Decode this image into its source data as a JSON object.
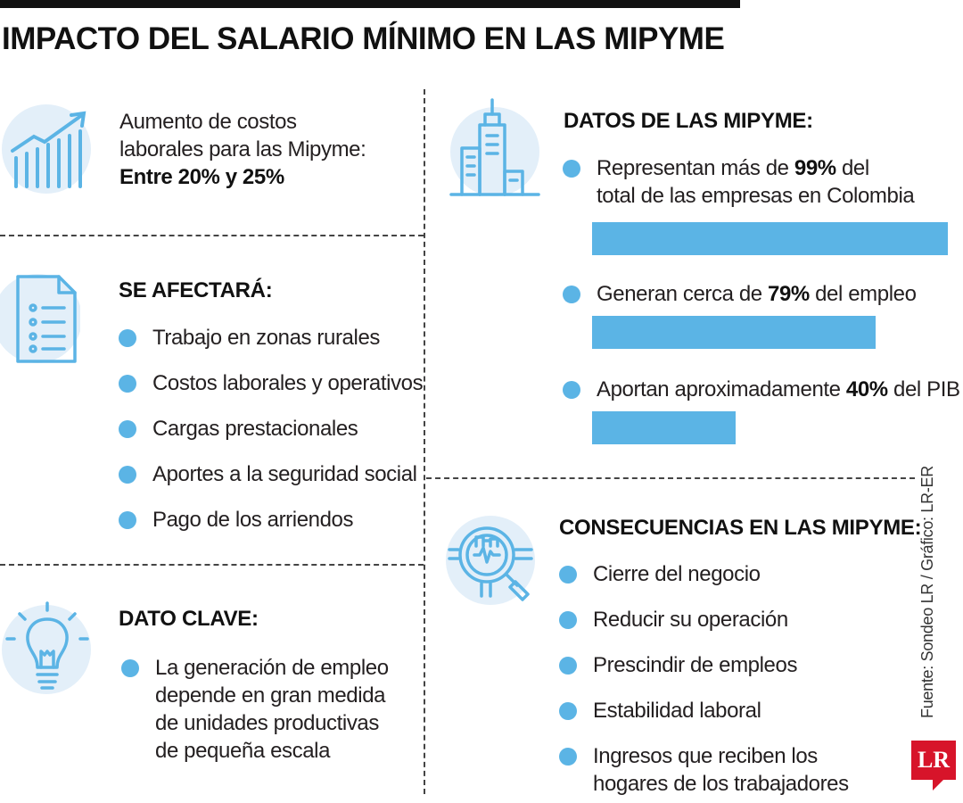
{
  "title": "IMPACTO DEL SALARIO MÍNIMO EN LAS MIPYME",
  "costos": {
    "line1": "Aumento de costos",
    "line2": "laborales para las Mipyme:",
    "value": "Entre 20% y 25%"
  },
  "afectara": {
    "heading": "SE AFECTARÁ:",
    "items": [
      "Trabajo en zonas rurales",
      "Costos laborales y operativos",
      "Cargas prestacionales",
      "Aportes a la seguridad social",
      "Pago de los arriendos"
    ]
  },
  "dato_clave": {
    "heading": "DATO CLAVE:",
    "lines": [
      "La generación de empleo",
      "depende en gran medida",
      "de unidades productivas",
      "de pequeña escala"
    ]
  },
  "datos": {
    "heading": "DATOS DE LAS MIPYME:",
    "items": [
      {
        "pre": "Representan más de ",
        "bold": "99%",
        "post": " del",
        "line2": "total de las empresas en Colombia",
        "value": 99
      },
      {
        "pre": "Generan cerca de ",
        "bold": "79%",
        "post": " del empleo",
        "line2": "",
        "value": 79
      },
      {
        "pre": "Aportan aproximadamente ",
        "bold": "40%",
        "post": " del PIB",
        "line2": "",
        "value": 40
      }
    ]
  },
  "consecuencias": {
    "heading": "CONSECUENCIAS EN LAS MIPYME:",
    "items": [
      "Cierre del negocio",
      "Reducir su operación",
      "Prescindir de empleos",
      "Estabilidad laboral",
      "Ingresos que reciben los"
    ],
    "last_line2": "hogares de los trabajadores"
  },
  "source": "Fuente: Sondeo LR / Gráfico: LR-ER",
  "logo": "LR",
  "colors": {
    "accent": "#5bb4e5",
    "icon_bg": "#e3eff9",
    "logo": "#d7142a"
  }
}
